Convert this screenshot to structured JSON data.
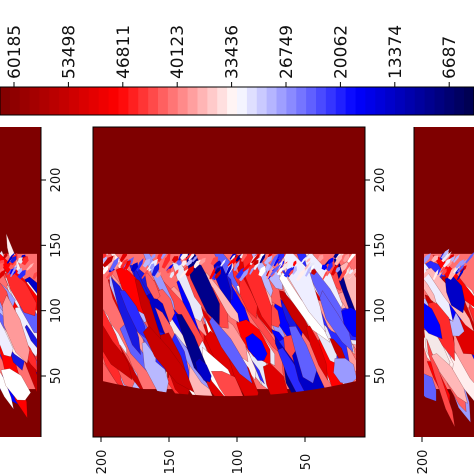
{
  "chart_data": {
    "type": "heatmap",
    "colormap": "seismic_r",
    "colorbar": {
      "orientation": "horizontal",
      "placement": "top",
      "tick_labels": [
        "60185",
        "53498",
        "46811",
        "40123",
        "33436",
        "26749",
        "20062",
        "13374",
        "6687"
      ],
      "colors": {
        "high": "#7f0000",
        "upper": "#ff0000",
        "mid": "#ffffff",
        "lower": "#0000ff",
        "low": "#00004c"
      }
    },
    "panels": [
      {
        "name": "left (cropped)",
        "y_tick_labels": [
          "200",
          "150",
          "100",
          "50"
        ],
        "y_ticks": [
          200,
          150,
          100,
          50
        ],
        "x_tick_labels": [],
        "x_ticks": []
      },
      {
        "name": "center",
        "y_tick_labels": [
          "200",
          "150",
          "100",
          "50"
        ],
        "y_ticks": [
          200,
          150,
          100,
          50
        ],
        "x_tick_labels": [
          "200",
          "150",
          "100",
          "50"
        ],
        "x_ticks": [
          200,
          150,
          100,
          50
        ],
        "ylim": [
          0,
          230
        ],
        "xlim": [
          0,
          205
        ],
        "background_color": "#7f0000",
        "grain_region_y": [
          40,
          145
        ]
      },
      {
        "name": "right (cropped)",
        "y_tick_labels": [],
        "y_ticks": [],
        "x_tick_labels": [
          "200"
        ],
        "x_ticks": [
          200
        ]
      }
    ]
  }
}
